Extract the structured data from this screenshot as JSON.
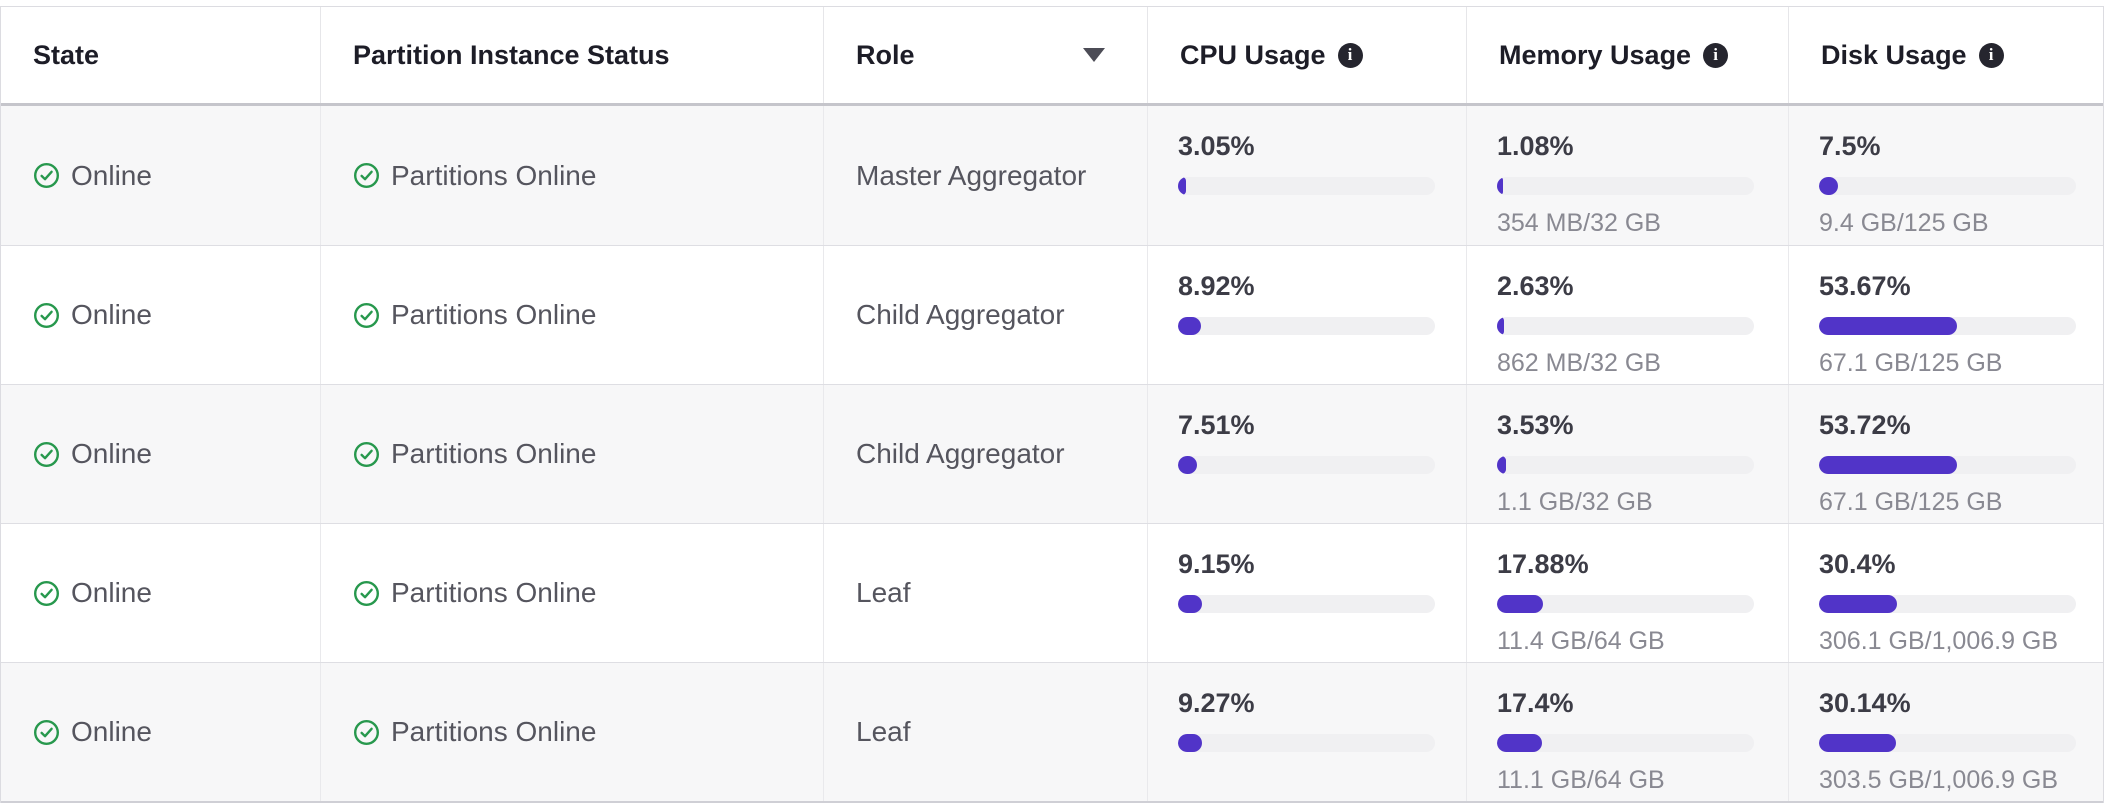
{
  "colors": {
    "accent_purple": "#5134c8",
    "bar_track": "#f0f0f2",
    "status_green": "#27984d",
    "zebra_row": "#f7f7f8"
  },
  "table": {
    "columns": [
      {
        "label": "State"
      },
      {
        "label": "Partition Instance Status"
      },
      {
        "label": "Role",
        "sort": "desc"
      },
      {
        "label": "CPU Usage",
        "info": true
      },
      {
        "label": "Memory Usage",
        "info": true
      },
      {
        "label": "Disk Usage",
        "info": true
      }
    ],
    "info_icon_glyph": "i",
    "rows": [
      {
        "state": "Online",
        "partition_status": "Partitions Online",
        "role": "Master Aggregator",
        "cpu": {
          "percent": "3.05%",
          "value": 3.05
        },
        "memory": {
          "percent": "1.08%",
          "value": 1.08,
          "detail": "354 MB/32 GB"
        },
        "disk": {
          "percent": "7.5%",
          "value": 7.5,
          "detail": "9.4 GB/125 GB"
        }
      },
      {
        "state": "Online",
        "partition_status": "Partitions Online",
        "role": "Child Aggregator",
        "cpu": {
          "percent": "8.92%",
          "value": 8.92
        },
        "memory": {
          "percent": "2.63%",
          "value": 2.63,
          "detail": "862 MB/32 GB"
        },
        "disk": {
          "percent": "53.67%",
          "value": 53.67,
          "detail": "67.1 GB/125 GB"
        }
      },
      {
        "state": "Online",
        "partition_status": "Partitions Online",
        "role": "Child Aggregator",
        "cpu": {
          "percent": "7.51%",
          "value": 7.51
        },
        "memory": {
          "percent": "3.53%",
          "value": 3.53,
          "detail": "1.1 GB/32 GB"
        },
        "disk": {
          "percent": "53.72%",
          "value": 53.72,
          "detail": "67.1 GB/125 GB"
        }
      },
      {
        "state": "Online",
        "partition_status": "Partitions Online",
        "role": "Leaf",
        "cpu": {
          "percent": "9.15%",
          "value": 9.15
        },
        "memory": {
          "percent": "17.88%",
          "value": 17.88,
          "detail": "11.4 GB/64 GB"
        },
        "disk": {
          "percent": "30.4%",
          "value": 30.4,
          "detail": "306.1 GB/1,006.9 GB"
        }
      },
      {
        "state": "Online",
        "partition_status": "Partitions Online",
        "role": "Leaf",
        "cpu": {
          "percent": "9.27%",
          "value": 9.27
        },
        "memory": {
          "percent": "17.4%",
          "value": 17.4,
          "detail": "11.1 GB/64 GB"
        },
        "disk": {
          "percent": "30.14%",
          "value": 30.14,
          "detail": "303.5 GB/1,006.9 GB"
        }
      }
    ]
  }
}
